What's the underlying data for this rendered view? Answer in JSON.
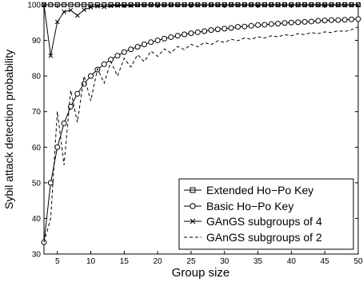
{
  "chart_data": {
    "type": "line",
    "title": "",
    "xlabel": "Group size",
    "ylabel": "Sybil attack detection probability",
    "xlim": [
      3,
      50
    ],
    "ylim": [
      30,
      100
    ],
    "xticks": [
      5,
      10,
      15,
      20,
      25,
      30,
      35,
      40,
      45,
      50
    ],
    "yticks": [
      30,
      40,
      50,
      60,
      70,
      80,
      90,
      100
    ],
    "grid": false,
    "legend_position": "bottom-right",
    "series": [
      {
        "name": "Extended Ho−Po Key",
        "style": "solid",
        "marker": "square",
        "x": [
          3,
          4,
          5,
          6,
          7,
          8,
          9,
          10,
          11,
          12,
          13,
          14,
          15,
          16,
          17,
          18,
          19,
          20,
          21,
          22,
          23,
          24,
          25,
          26,
          27,
          28,
          29,
          30,
          31,
          32,
          33,
          34,
          35,
          36,
          37,
          38,
          39,
          40,
          41,
          42,
          43,
          44,
          45,
          46,
          47,
          48,
          49,
          50
        ],
        "y": [
          100,
          100,
          100,
          100,
          100,
          100,
          100,
          100,
          100,
          100,
          100,
          100,
          100,
          100,
          100,
          100,
          100,
          100,
          100,
          100,
          100,
          100,
          100,
          100,
          100,
          100,
          100,
          100,
          100,
          100,
          100,
          100,
          100,
          100,
          100,
          100,
          100,
          100,
          100,
          100,
          100,
          100,
          100,
          100,
          100,
          100,
          100,
          100
        ]
      },
      {
        "name": "Basic Ho−Po Key",
        "style": "solid",
        "marker": "circle",
        "x": [
          3,
          4,
          5,
          6,
          7,
          8,
          9,
          10,
          11,
          12,
          13,
          14,
          15,
          16,
          17,
          18,
          19,
          20,
          21,
          22,
          23,
          24,
          25,
          26,
          27,
          28,
          29,
          30,
          31,
          32,
          33,
          34,
          35,
          36,
          37,
          38,
          39,
          40,
          41,
          42,
          43,
          44,
          45,
          46,
          47,
          48,
          49,
          50
        ],
        "y": [
          33.3,
          50.0,
          60.0,
          66.7,
          71.4,
          75.0,
          77.8,
          80.0,
          81.8,
          83.3,
          84.6,
          85.7,
          86.7,
          87.5,
          88.2,
          88.9,
          89.5,
          90.0,
          90.5,
          90.9,
          91.3,
          91.7,
          92.0,
          92.3,
          92.6,
          92.9,
          93.1,
          93.3,
          93.5,
          93.8,
          93.9,
          94.1,
          94.3,
          94.4,
          94.6,
          94.7,
          94.9,
          95.0,
          95.1,
          95.2,
          95.3,
          95.5,
          95.6,
          95.7,
          95.7,
          95.8,
          95.9,
          96.0
        ]
      },
      {
        "name": "GAnGS subgroups of 4",
        "style": "solid",
        "marker": "x",
        "x": [
          3,
          4,
          5,
          6,
          7,
          8,
          9,
          10,
          11,
          12,
          13,
          14,
          15,
          16,
          17,
          18,
          19,
          20,
          21,
          22,
          23,
          24,
          25,
          26,
          27,
          28,
          29,
          30,
          31,
          32,
          33,
          34,
          35,
          36,
          37,
          38,
          39,
          40,
          41,
          42,
          43,
          44,
          45,
          46,
          47,
          48,
          49,
          50
        ],
        "y": [
          100,
          85.7,
          95.2,
          98.0,
          98.5,
          97.0,
          98.6,
          99.3,
          99.6,
          99.4,
          99.7,
          99.8,
          99.8,
          99.8,
          99.9,
          99.9,
          99.9,
          99.9,
          99.9,
          99.9,
          99.9,
          99.9,
          99.9,
          99.9,
          99.9,
          99.9,
          99.9,
          99.9,
          99.9,
          99.9,
          99.9,
          99.9,
          99.9,
          99.9,
          99.9,
          99.9,
          99.9,
          99.9,
          99.9,
          99.9,
          99.9,
          99.9,
          99.9,
          99.9,
          99.9,
          99.9,
          99.9,
          99.9
        ]
      },
      {
        "name": "GAnGS subgroups of 2",
        "style": "dashed",
        "marker": "none",
        "x": [
          3,
          4,
          5,
          6,
          7,
          8,
          9,
          10,
          11,
          12,
          13,
          14,
          15,
          16,
          17,
          18,
          19,
          20,
          21,
          22,
          23,
          24,
          25,
          26,
          27,
          28,
          29,
          30,
          31,
          32,
          33,
          34,
          35,
          36,
          37,
          38,
          39,
          40,
          41,
          42,
          43,
          44,
          45,
          46,
          47,
          48,
          49,
          50
        ],
        "y": [
          33.3,
          40.0,
          70.0,
          55.0,
          76.0,
          67.0,
          80.0,
          73.0,
          82.0,
          78.0,
          84.0,
          80.0,
          85.0,
          82.5,
          86.0,
          84.0,
          87.0,
          85.5,
          87.6,
          86.5,
          88.3,
          87.4,
          88.9,
          88.2,
          89.4,
          88.8,
          89.9,
          89.4,
          90.3,
          89.9,
          90.7,
          90.3,
          91.0,
          90.7,
          91.3,
          91.0,
          91.6,
          91.3,
          91.9,
          91.6,
          92.2,
          91.9,
          92.4,
          92.2,
          92.7,
          92.5,
          93.0,
          93.8
        ]
      }
    ]
  }
}
